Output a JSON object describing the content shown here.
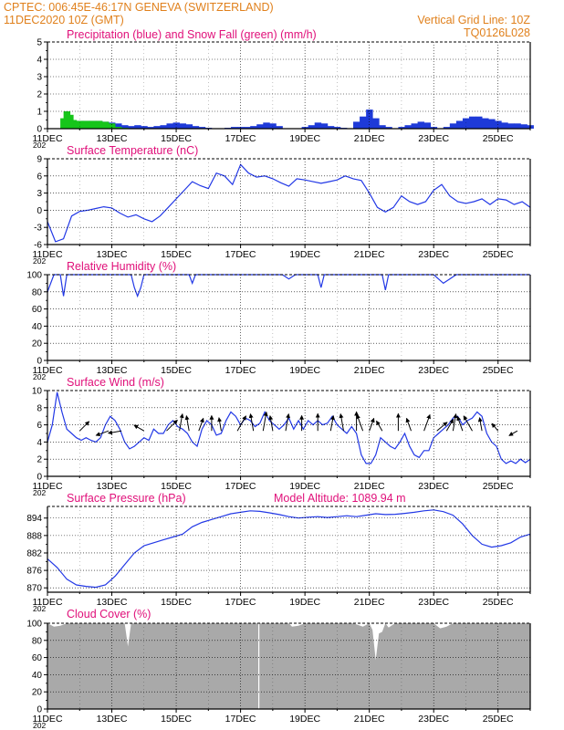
{
  "header": {
    "line1_left": "CPTEC:   006:45E-46:17N   GENEVA (SWITZERLAND)",
    "line2_left": "11DEC2020 10Z (GMT)",
    "line2_right": "Vertical Grid Line: 10Z",
    "line3_right": "TQ0126L028",
    "altitude": "Model Altitude: 1089.94  m"
  },
  "colors": {
    "header_text": "#e0801c",
    "panel_title": "#e0107a",
    "series_line": "#2238e6",
    "snow": "#16c51a",
    "rain": "#1e3ad8",
    "cloud": "#a9a9a9"
  },
  "x_ticks": [
    "11DEC",
    "13DEC",
    "15DEC",
    "17DEC",
    "19DEC",
    "21DEC",
    "23DEC",
    "25DEC"
  ],
  "year_stub": "202",
  "chart_data": [
    {
      "id": "precip",
      "type": "bar",
      "title": "Precipitation (blue) and Snow Fall (green) (mm/h)",
      "ylim": [
        0,
        5
      ],
      "yticks": [
        0,
        1,
        2,
        3,
        4,
        5
      ],
      "x_unit": "days since 11DEC 00Z",
      "series": [
        {
          "name": "Precipitation",
          "color": "#1e3ad8",
          "x": [
            0.5,
            0.6,
            0.7,
            0.8,
            0.9,
            1.0,
            1.2,
            1.4,
            1.6,
            1.8,
            2.0,
            2.2,
            2.4,
            2.6,
            2.8,
            3.0,
            3.2,
            3.4,
            3.6,
            3.8,
            4.0,
            4.2,
            4.4,
            4.6,
            4.8,
            5.0,
            5.2,
            5.4,
            5.6,
            5.8,
            6.0,
            6.2,
            6.4,
            6.6,
            6.8,
            7.0,
            7.2,
            7.4,
            7.6,
            7.8,
            8.0,
            8.2,
            8.4,
            8.6,
            8.8,
            9.0,
            9.2,
            9.4,
            9.6,
            9.8,
            10.0,
            10.2,
            10.4,
            10.6,
            10.8,
            11.0,
            11.2,
            11.4,
            11.6,
            11.8,
            12.0,
            12.2,
            12.4,
            12.6,
            12.8,
            13.0,
            13.2,
            13.4,
            13.6,
            13.8,
            14.0,
            14.2,
            14.4,
            14.6,
            14.8,
            15.0
          ],
          "values": [
            0.0,
            0.1,
            0.15,
            0.2,
            0.3,
            0.45,
            0.45,
            0.45,
            0.45,
            0.4,
            0.35,
            0.3,
            0.2,
            0.15,
            0.2,
            0.15,
            0.1,
            0.15,
            0.2,
            0.3,
            0.35,
            0.3,
            0.25,
            0.15,
            0.1,
            0.05,
            0.0,
            0.0,
            0.05,
            0.1,
            0.1,
            0.1,
            0.15,
            0.25,
            0.35,
            0.3,
            0.15,
            0.0,
            0.0,
            0.0,
            0.1,
            0.2,
            0.35,
            0.3,
            0.15,
            0.1,
            0.05,
            0.0,
            0.4,
            0.7,
            1.1,
            0.6,
            0.2,
            0.1,
            0.0,
            0.1,
            0.2,
            0.3,
            0.4,
            0.35,
            0.1,
            0.0,
            0.1,
            0.3,
            0.45,
            0.6,
            0.7,
            0.7,
            0.6,
            0.55,
            0.45,
            0.35,
            0.3,
            0.3,
            0.25,
            0.2
          ]
        },
        {
          "name": "Snow Fall",
          "color": "#16c51a",
          "x": [
            0.5,
            0.6,
            0.7,
            0.8,
            0.9,
            1.0,
            1.2,
            1.4,
            1.6,
            1.8,
            2.0,
            2.2,
            2.4
          ],
          "values": [
            0.6,
            1.0,
            0.8,
            0.5,
            0.35,
            0.45,
            0.45,
            0.45,
            0.45,
            0.4,
            0.3,
            0.1,
            0.05
          ]
        }
      ]
    },
    {
      "id": "temp",
      "type": "line",
      "title": "Surface Temperature (nC)",
      "ylim": [
        -6,
        9
      ],
      "yticks": [
        -6,
        -3,
        0,
        3,
        6,
        9
      ],
      "x_unit": "days since 11DEC 00Z",
      "x": [
        0.0,
        0.25,
        0.5,
        0.75,
        1.0,
        1.25,
        1.5,
        1.75,
        2.0,
        2.25,
        2.5,
        2.75,
        3.0,
        3.25,
        3.5,
        3.75,
        4.0,
        4.25,
        4.5,
        4.75,
        5.0,
        5.25,
        5.5,
        5.75,
        6.0,
        6.25,
        6.5,
        6.75,
        7.0,
        7.25,
        7.5,
        7.75,
        8.0,
        8.25,
        8.5,
        8.75,
        9.0,
        9.25,
        9.5,
        9.75,
        10.0,
        10.25,
        10.5,
        10.75,
        11.0,
        11.25,
        11.5,
        11.75,
        12.0,
        12.25,
        12.5,
        12.75,
        13.0,
        13.25,
        13.5,
        13.75,
        14.0,
        14.25,
        14.5,
        14.75,
        15.0
      ],
      "values": [
        -2.0,
        -5.5,
        -5.0,
        -1.0,
        -0.2,
        0.0,
        0.3,
        0.6,
        0.4,
        -0.5,
        -1.2,
        -0.8,
        -1.5,
        -2.0,
        -1.0,
        0.5,
        2.0,
        3.5,
        5.0,
        4.3,
        3.8,
        6.5,
        6.0,
        4.5,
        8.0,
        6.5,
        5.8,
        6.0,
        5.5,
        4.8,
        4.2,
        5.5,
        5.3,
        5.0,
        4.7,
        5.0,
        5.3,
        6.0,
        5.5,
        5.2,
        3.0,
        0.5,
        -0.3,
        0.5,
        2.5,
        1.5,
        1.0,
        1.5,
        3.5,
        4.5,
        2.5,
        1.5,
        1.2,
        1.5,
        2.0,
        1.0,
        2.0,
        1.8,
        1.0,
        1.5,
        0.5
      ]
    },
    {
      "id": "rh",
      "type": "line",
      "title": "Relative Humidity (%)",
      "ylim": [
        0,
        100
      ],
      "yticks": [
        0,
        20,
        40,
        60,
        80,
        100
      ],
      "x_unit": "days since 11DEC 00Z",
      "x": [
        0.0,
        0.2,
        0.4,
        0.5,
        0.6,
        0.8,
        1.0,
        1.2,
        1.4,
        1.6,
        1.8,
        2.0,
        2.2,
        2.4,
        2.6,
        2.7,
        2.8,
        2.9,
        3.0,
        3.2,
        3.4,
        3.6,
        3.8,
        4.0,
        4.2,
        4.4,
        4.5,
        4.6,
        4.8,
        5.0,
        5.2,
        5.4,
        5.6,
        5.8,
        6.0,
        6.5,
        7.0,
        7.3,
        7.5,
        7.7,
        8.0,
        8.4,
        8.5,
        8.6,
        8.8,
        9.0,
        9.5,
        10.0,
        10.4,
        10.5,
        10.6,
        10.8,
        11.0,
        11.5,
        12.0,
        12.3,
        12.5,
        12.7,
        13.0,
        13.5,
        14.0,
        14.5,
        15.0
      ],
      "values": [
        80,
        100,
        100,
        75,
        100,
        100,
        100,
        100,
        100,
        100,
        100,
        100,
        100,
        100,
        100,
        85,
        75,
        85,
        100,
        100,
        100,
        100,
        100,
        100,
        100,
        100,
        90,
        100,
        100,
        100,
        100,
        100,
        100,
        100,
        100,
        100,
        100,
        100,
        95,
        100,
        100,
        100,
        85,
        100,
        100,
        100,
        100,
        100,
        100,
        82,
        100,
        100,
        100,
        100,
        100,
        90,
        95,
        100,
        100,
        100,
        100,
        100,
        100
      ]
    },
    {
      "id": "wind",
      "type": "line",
      "title": "Surface Wind (m/s)",
      "ylim": [
        0,
        10
      ],
      "yticks": [
        0,
        2,
        4,
        6,
        8,
        10
      ],
      "x_unit": "days since 11DEC 00Z",
      "x": [
        0.0,
        0.15,
        0.3,
        0.45,
        0.6,
        0.75,
        0.9,
        1.05,
        1.2,
        1.35,
        1.5,
        1.65,
        1.8,
        1.95,
        2.1,
        2.25,
        2.4,
        2.55,
        2.7,
        2.85,
        3.0,
        3.15,
        3.3,
        3.45,
        3.6,
        3.75,
        3.9,
        4.05,
        4.2,
        4.35,
        4.5,
        4.65,
        4.8,
        4.95,
        5.1,
        5.25,
        5.4,
        5.55,
        5.7,
        5.85,
        6.0,
        6.15,
        6.3,
        6.45,
        6.6,
        6.75,
        6.9,
        7.05,
        7.2,
        7.35,
        7.5,
        7.65,
        7.8,
        7.95,
        8.1,
        8.25,
        8.4,
        8.55,
        8.7,
        8.85,
        9.0,
        9.15,
        9.3,
        9.45,
        9.6,
        9.75,
        9.9,
        10.05,
        10.2,
        10.35,
        10.5,
        10.65,
        10.8,
        10.95,
        11.1,
        11.25,
        11.4,
        11.55,
        11.7,
        11.85,
        12.0,
        12.15,
        12.3,
        12.45,
        12.6,
        12.75,
        12.9,
        13.05,
        13.2,
        13.35,
        13.5,
        13.65,
        13.8,
        13.95,
        14.1,
        14.25,
        14.4,
        14.55,
        14.7,
        14.85,
        15.0
      ],
      "values": [
        4.0,
        6.0,
        9.8,
        7.5,
        5.5,
        5.0,
        4.5,
        4.2,
        4.5,
        4.2,
        4.0,
        4.5,
        6.0,
        7.0,
        6.5,
        5.5,
        4.0,
        3.2,
        3.5,
        4.0,
        4.5,
        4.2,
        5.5,
        5.0,
        5.0,
        6.0,
        6.5,
        5.8,
        5.5,
        5.0,
        4.0,
        3.5,
        5.5,
        6.5,
        6.0,
        4.8,
        5.0,
        6.5,
        7.5,
        7.0,
        6.0,
        6.8,
        6.5,
        5.8,
        6.2,
        7.5,
        6.5,
        6.0,
        5.5,
        6.0,
        6.8,
        5.5,
        6.5,
        5.5,
        6.5,
        6.0,
        6.5,
        6.0,
        6.2,
        7.0,
        6.0,
        5.5,
        5.0,
        5.8,
        5.0,
        2.5,
        1.5,
        1.5,
        2.5,
        4.5,
        4.0,
        3.5,
        3.2,
        4.0,
        5.0,
        3.5,
        2.5,
        2.2,
        3.0,
        3.0,
        4.5,
        5.0,
        5.5,
        6.0,
        6.8,
        7.0,
        6.0,
        6.5,
        6.8,
        7.5,
        7.0,
        5.0,
        4.0,
        3.5,
        2.0,
        1.5,
        1.8,
        1.5,
        2.0,
        1.6,
        2.0
      ]
    },
    {
      "id": "pressure",
      "type": "line",
      "title": "Surface Pressure (hPa)",
      "ylim": [
        868.5,
        898
      ],
      "yticks": [
        870,
        876,
        882,
        888,
        894
      ],
      "x_unit": "days since 11DEC 00Z",
      "x": [
        0.0,
        0.3,
        0.6,
        0.9,
        1.2,
        1.5,
        1.8,
        2.1,
        2.4,
        2.7,
        3.0,
        3.3,
        3.6,
        3.9,
        4.2,
        4.5,
        4.8,
        5.1,
        5.4,
        5.7,
        6.0,
        6.3,
        6.6,
        6.9,
        7.2,
        7.5,
        7.8,
        8.1,
        8.4,
        8.7,
        9.0,
        9.3,
        9.6,
        9.9,
        10.2,
        10.5,
        10.8,
        11.1,
        11.4,
        11.7,
        12.0,
        12.3,
        12.6,
        12.9,
        13.2,
        13.5,
        13.8,
        14.1,
        14.4,
        14.7,
        15.0
      ],
      "values": [
        880,
        877,
        873,
        871,
        870.5,
        870.2,
        871,
        874,
        878,
        882,
        884.5,
        885.5,
        886.5,
        887.5,
        888.5,
        891,
        892.5,
        893.5,
        894.5,
        895.5,
        896,
        896.5,
        896.3,
        895.8,
        895.2,
        894.5,
        894,
        894.3,
        894.5,
        894.2,
        894.5,
        894.8,
        894.5,
        895,
        895.5,
        895.2,
        895.3,
        895.6,
        896,
        896.5,
        896.8,
        896.2,
        895,
        892,
        888,
        885,
        884,
        884.5,
        885.5,
        887.5,
        888.5
      ]
    },
    {
      "id": "cloud",
      "type": "area",
      "title": "Cloud Cover (%)",
      "ylim": [
        0,
        100
      ],
      "yticks": [
        0,
        20,
        40,
        60,
        80,
        100
      ],
      "x_unit": "days since 11DEC 00Z",
      "x": [
        0.0,
        0.2,
        0.4,
        0.6,
        0.8,
        1.0,
        1.2,
        1.4,
        1.6,
        1.8,
        2.0,
        2.2,
        2.4,
        2.5,
        2.6,
        2.8,
        3.0,
        3.2,
        3.4,
        3.6,
        3.8,
        4.0,
        4.5,
        5.0,
        5.5,
        5.6,
        5.7,
        6.0,
        6.5,
        7.0,
        7.5,
        7.6,
        7.8,
        8.0,
        8.5,
        9.0,
        9.5,
        9.8,
        10.0,
        10.1,
        10.2,
        10.3,
        10.4,
        10.5,
        10.6,
        10.8,
        11.0,
        11.5,
        12.0,
        12.2,
        12.4,
        12.6,
        13.0,
        13.5,
        14.0,
        14.5,
        15.0
      ],
      "values": [
        100,
        96,
        97,
        100,
        100,
        100,
        100,
        100,
        100,
        100,
        100,
        100,
        100,
        73,
        100,
        100,
        100,
        100,
        100,
        100,
        100,
        100,
        100,
        100,
        100,
        100,
        100,
        100,
        100,
        100,
        100,
        96,
        97,
        100,
        100,
        100,
        100,
        96,
        100,
        92,
        57,
        88,
        90,
        100,
        95,
        100,
        100,
        100,
        100,
        94,
        96,
        100,
        100,
        100,
        100,
        100,
        100
      ]
    }
  ],
  "wind_arrows": {
    "x": [
      1.0,
      1.9,
      2.3,
      3.0,
      3.7,
      4.1,
      4.4,
      4.7,
      5.1,
      5.4,
      5.9,
      6.4,
      6.7,
      7.0,
      7.4,
      7.9,
      8.4,
      8.8,
      9.2,
      9.6,
      9.8,
      10.0,
      10.4,
      10.9,
      11.3,
      11.7,
      12.1,
      12.4,
      12.6,
      12.9,
      13.2,
      13.5,
      14.0,
      14.6
    ],
    "dir_deg": [
      45,
      200,
      190,
      150,
      45,
      80,
      100,
      70,
      90,
      100,
      60,
      100,
      80,
      100,
      80,
      90,
      90,
      80,
      100,
      90,
      110,
      70,
      120,
      90,
      110,
      70,
      40,
      60,
      80,
      110,
      120,
      100,
      130,
      210
    ],
    "speed": [
      3.5,
      3.5,
      3.5,
      3.0,
      4.0,
      4.5,
      4.0,
      3.5,
      4.0,
      3.5,
      4.5,
      4.5,
      5.0,
      4.0,
      4.5,
      4.0,
      4.5,
      4.0,
      4.5,
      5.0,
      4.5,
      3.5,
      3.0,
      4.5,
      3.5,
      4.5,
      3.5,
      3.5,
      4.5,
      4.0,
      4.5,
      3.5,
      2.5,
      2.5
    ]
  }
}
